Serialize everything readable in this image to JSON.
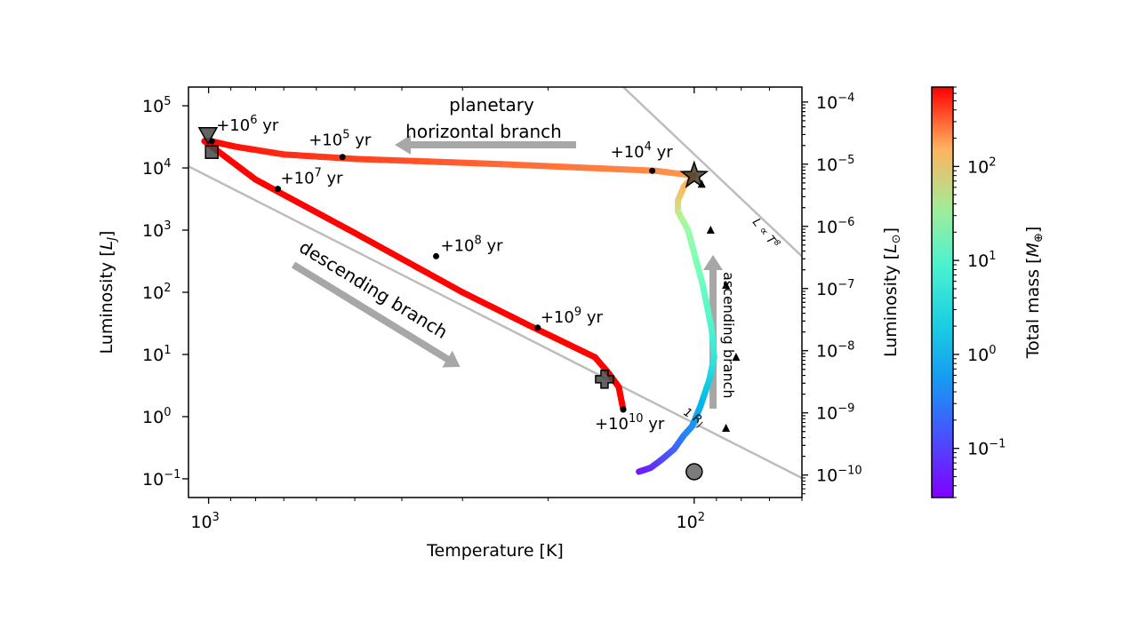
{
  "chart_data": {
    "type": "line",
    "xlabel": "Temperature [K]",
    "ylabel": "Luminosity [L_J]",
    "ylabel_main": "Luminosity [",
    "ylabel_sub": "J",
    "ylabel_close": "]",
    "y2label_main": "Luminosity [",
    "y2label_sub": "⊙",
    "y2label_close": "]",
    "colorbar_label": "Total mass [M⊕]",
    "colorbar_label_main": "Total mass [",
    "colorbar_label_sub": "⊕",
    "colorbar_label_close": "]",
    "x_scale": "log (inverted)",
    "y_scale": "log",
    "xlim": [
      1100,
      60
    ],
    "ylim": [
      0.05,
      200000
    ],
    "x_ticks": [
      {
        "value": 1000,
        "label_base": "10",
        "label_exp": "3"
      },
      {
        "value": 100,
        "label_base": "10",
        "label_exp": "2"
      }
    ],
    "y_ticks": [
      {
        "value": 0.1,
        "label_base": "10",
        "label_exp": "−1"
      },
      {
        "value": 1,
        "label_base": "10",
        "label_exp": "0"
      },
      {
        "value": 10,
        "label_base": "10",
        "label_exp": "1"
      },
      {
        "value": 100,
        "label_base": "10",
        "label_exp": "2"
      },
      {
        "value": 1000,
        "label_base": "10",
        "label_exp": "3"
      },
      {
        "value": 10000,
        "label_base": "10",
        "label_exp": "4"
      },
      {
        "value": 100000,
        "label_base": "10",
        "label_exp": "5"
      }
    ],
    "y2_ticks": [
      {
        "value_LJ": 0.115,
        "label_base": "10",
        "label_exp": "−10"
      },
      {
        "value_LJ": 1.15,
        "label_base": "10",
        "label_exp": "−9"
      },
      {
        "value_LJ": 11.5,
        "label_base": "10",
        "label_exp": "−8"
      },
      {
        "value_LJ": 115,
        "label_base": "10",
        "label_exp": "−7"
      },
      {
        "value_LJ": 1150,
        "label_base": "10",
        "label_exp": "−6"
      },
      {
        "value_LJ": 11500,
        "label_base": "10",
        "label_exp": "−5"
      },
      {
        "value_LJ": 115000,
        "label_base": "10",
        "label_exp": "−4"
      }
    ],
    "colorbar": {
      "scale": "log",
      "range": [
        0.03,
        700
      ],
      "ticks": [
        {
          "value": 0.1,
          "label_base": "10",
          "label_exp": "−1"
        },
        {
          "value": 1,
          "label_base": "10",
          "label_exp": "0"
        },
        {
          "value": 10,
          "label_base": "10",
          "label_exp": "1"
        },
        {
          "value": 100,
          "label_base": "10",
          "label_exp": "2"
        }
      ],
      "colormap": "rainbow"
    },
    "track": [
      {
        "T": 130,
        "L": 0.13,
        "M": 0.04
      },
      {
        "T": 123,
        "L": 0.15,
        "M": 0.05
      },
      {
        "T": 117,
        "L": 0.2,
        "M": 0.07
      },
      {
        "T": 110,
        "L": 0.3,
        "M": 0.1
      },
      {
        "T": 105,
        "L": 0.5,
        "M": 0.15
      },
      {
        "T": 101,
        "L": 0.7,
        "M": 0.2
      },
      {
        "T": 97,
        "L": 1.5,
        "M": 0.35
      },
      {
        "T": 93,
        "L": 4,
        "M": 0.6
      },
      {
        "T": 91,
        "L": 9,
        "M": 1
      },
      {
        "T": 92,
        "L": 25,
        "M": 1.6
      },
      {
        "T": 96,
        "L": 130,
        "M": 3
      },
      {
        "T": 103,
        "L": 1000,
        "M": 7
      },
      {
        "T": 108,
        "L": 2000,
        "M": 15
      },
      {
        "T": 108,
        "L": 3000,
        "M": 30
      },
      {
        "T": 105,
        "L": 5000,
        "M": 50
      },
      {
        "T": 100,
        "L": 7500,
        "M": 80
      },
      {
        "T": 120,
        "L": 9000,
        "M": 110
      },
      {
        "T": 250,
        "L": 11500,
        "M": 180
      },
      {
        "T": 500,
        "L": 14000,
        "M": 300
      },
      {
        "T": 700,
        "L": 16500,
        "M": 400
      },
      {
        "T": 880,
        "L": 22000,
        "M": 550
      },
      {
        "T": 990,
        "L": 27000,
        "M": 650
      },
      {
        "T": 1020,
        "L": 27000,
        "M": 680
      },
      {
        "T": 960,
        "L": 19000,
        "M": 680
      },
      {
        "T": 800,
        "L": 6500,
        "M": 680
      },
      {
        "T": 500,
        "L": 900,
        "M": 680
      },
      {
        "T": 300,
        "L": 100,
        "M": 680
      },
      {
        "T": 220,
        "L": 30,
        "M": 680
      },
      {
        "T": 160,
        "L": 9,
        "M": 680
      },
      {
        "T": 150,
        "L": 5,
        "M": 680
      },
      {
        "T": 143,
        "L": 3,
        "M": 680
      },
      {
        "T": 140,
        "L": 1.3,
        "M": 680
      }
    ],
    "age_markers": [
      {
        "T": 985,
        "L": 27000,
        "exp": "6"
      },
      {
        "T": 530,
        "L": 15000,
        "exp": "5"
      },
      {
        "T": 122,
        "L": 9000,
        "exp": "4"
      },
      {
        "T": 720,
        "L": 4600,
        "exp": "7"
      },
      {
        "T": 340,
        "L": 380,
        "exp": "8"
      },
      {
        "T": 210,
        "L": 27,
        "exp": "9"
      },
      {
        "T": 140,
        "L": 1.3,
        "exp": "10"
      }
    ],
    "age_label_prefix": "+10",
    "age_label_suffix": " yr",
    "triangle_markers": [
      {
        "T": 96.5,
        "L": 5500
      },
      {
        "T": 92.5,
        "L": 1000
      },
      {
        "T": 86,
        "L": 130
      },
      {
        "T": 82,
        "L": 9
      },
      {
        "T": 86,
        "L": 0.65
      }
    ],
    "special_markers": [
      {
        "shape": "down-triangle",
        "T": 1003,
        "L": 33000
      },
      {
        "shape": "square",
        "T": 985,
        "L": 18000
      },
      {
        "shape": "star",
        "T": 100,
        "L": 7500
      },
      {
        "shape": "plus",
        "T": 153,
        "L": 4
      },
      {
        "shape": "circle",
        "T": 100,
        "L": 0.13
      }
    ],
    "reference_lines": [
      {
        "label_main": "1 R",
        "label_sub": "J",
        "points": [
          [
            1200,
            15000
          ],
          [
            58,
            0.09
          ]
        ]
      },
      {
        "label_main": "L ∝ T",
        "label_sup": "8",
        "points": [
          [
            140,
            200000
          ],
          [
            60,
            380
          ]
        ]
      }
    ],
    "branch_labels": {
      "horizontal_line1": "planetary",
      "horizontal_line2": "horizontal branch",
      "descending": "descending branch",
      "ascending": "ascending branch"
    }
  }
}
